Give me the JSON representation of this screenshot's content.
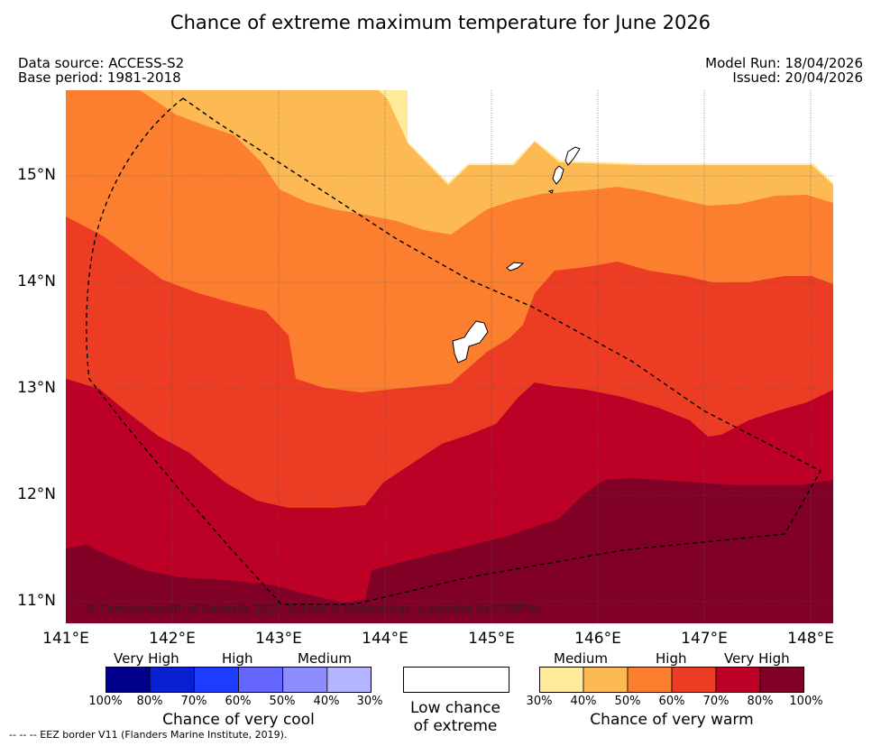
{
  "title": "Chance of extreme maximum temperature for June 2026",
  "meta": {
    "data_source": "Data source: ACCESS-S2",
    "base_period": "Base period: 1981-2018",
    "model_run": "Model Run: 18/04/2026",
    "issued": "Issued: 20/04/2026"
  },
  "map": {
    "lat_labels": [
      "15°N",
      "14°N",
      "13°N",
      "12°N",
      "11°N"
    ],
    "lon_labels": [
      "141°E",
      "142°E",
      "143°E",
      "144°E",
      "145°E",
      "146°E",
      "147°E",
      "148°E"
    ],
    "copyright": "© Commonwealth of Australia 2026, Bureau of Meteorology, supported by COSPPac"
  },
  "legend": {
    "cool": {
      "categories": [
        "Very High",
        "High",
        "Medium"
      ],
      "ticks": [
        "100%",
        "80%",
        "70%",
        "60%",
        "50%",
        "40%",
        "30%"
      ],
      "colors": [
        "#00008b",
        "#0a1ed2",
        "#1e3cff",
        "#6464ff",
        "#8c8cff",
        "#b4b4ff"
      ],
      "title": "Chance of very cool"
    },
    "low": {
      "line1": "Low chance",
      "line2": "of extreme"
    },
    "warm": {
      "categories": [
        "Medium",
        "High",
        "Very High"
      ],
      "ticks": [
        "30%",
        "40%",
        "50%",
        "60%",
        "70%",
        "80%",
        "100%"
      ],
      "colors": [
        "#ffeb9b",
        "#fdb954",
        "#fc7f2f",
        "#ed3c24",
        "#bd0026",
        "#800026"
      ],
      "title": "Chance of very warm"
    }
  },
  "footnote": "--  --  -- EEZ border V11 (Flanders Marine Institute, 2019)."
}
